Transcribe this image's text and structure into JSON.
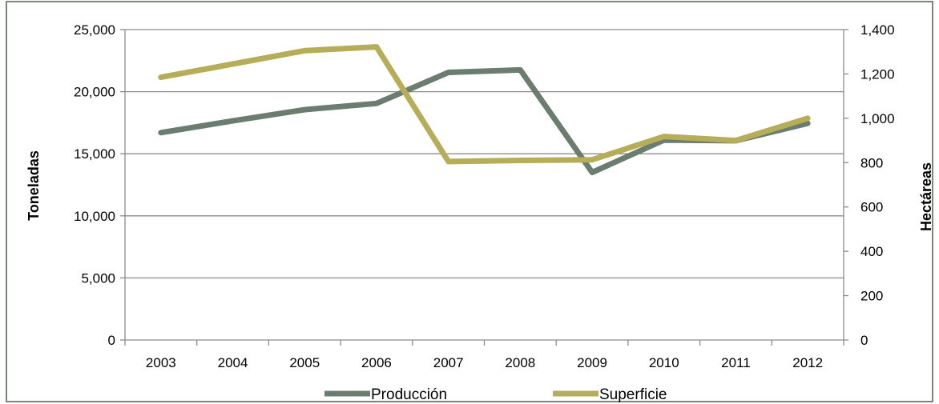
{
  "chart_data": {
    "type": "line",
    "categories": [
      "2003",
      "2004",
      "2005",
      "2006",
      "2007",
      "2008",
      "2009",
      "2010",
      "2011",
      "2012"
    ],
    "series": [
      {
        "name": "Producción",
        "axis": "left",
        "color": "#6b7d6f",
        "values": [
          16700,
          17650,
          18550,
          19050,
          21550,
          21750,
          13500,
          16100,
          16050,
          17450
        ]
      },
      {
        "name": "Superficie",
        "axis": "right",
        "color": "#b5ad57",
        "values": [
          1185,
          1245,
          1305,
          1322,
          805,
          810,
          813,
          918,
          900,
          1000
        ]
      }
    ],
    "ylabel": "Toneladas",
    "y2label": "Hectáreas",
    "ylim": [
      0,
      25000
    ],
    "y2lim": [
      0,
      1400
    ],
    "yticks": [
      "0",
      "5,000",
      "10,000",
      "15,000",
      "20,000",
      "25,000"
    ],
    "y2ticks": [
      "0",
      "200",
      "400",
      "600",
      "800",
      "1,000",
      "1,200",
      "1,400"
    ],
    "grid": true,
    "legend_position": "bottom"
  }
}
